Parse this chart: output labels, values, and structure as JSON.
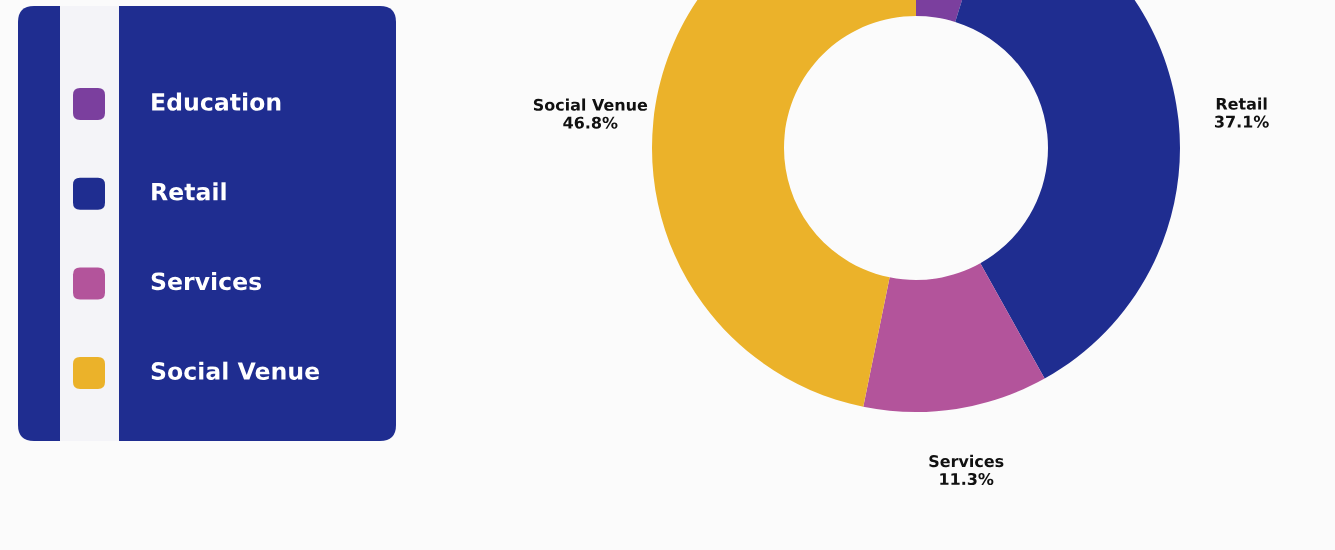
{
  "chart_data": {
    "type": "donut",
    "categories": [
      "Education",
      "Retail",
      "Services",
      "Social Venue"
    ],
    "values": [
      4.8,
      37.1,
      11.3,
      46.8
    ],
    "colors": [
      "#7b3f9e",
      "#1f2d90",
      "#b3549b",
      "#ebb22a"
    ],
    "value_labels": [
      null,
      "37.1%",
      "11.3%",
      "46.8%"
    ],
    "legend": "left"
  }
}
